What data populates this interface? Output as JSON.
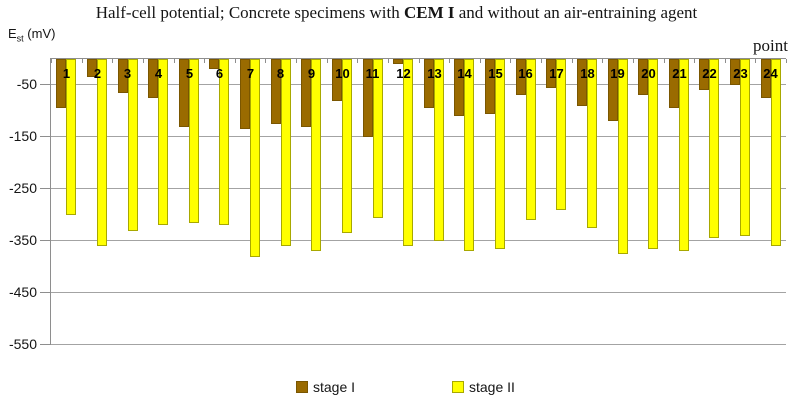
{
  "title": {
    "prefix": "Half-cell potential; Concrete specimens with ",
    "bold": "CEM I",
    "suffix": " and without an air-entraining agent"
  },
  "y_axis": {
    "label_main": "E",
    "label_sub": "st",
    "label_unit": " (mV)"
  },
  "x_axis": {
    "label": "point"
  },
  "colors": {
    "stage1_fill": "#9a6b00",
    "stage1_border": "#7a5600",
    "stage2_fill": "#ffff00",
    "stage2_border": "#a8a800",
    "gridline": "#a3a3a3",
    "axis": "#8e8e8e"
  },
  "chart_data": {
    "type": "bar",
    "title": "Half-cell potential; Concrete specimens with CEM I and without an air-entraining agent",
    "xlabel": "point",
    "ylabel": "Est (mV)",
    "ylim": [
      -550,
      0
    ],
    "grid": true,
    "gridlines": [
      -50,
      -150,
      -250,
      -350,
      -450,
      -550
    ],
    "legend_position": "bottom",
    "categories": [
      "1",
      "2",
      "3",
      "4",
      "5",
      "6",
      "7",
      "8",
      "9",
      "10",
      "11",
      "12",
      "13",
      "14",
      "15",
      "16",
      "17",
      "18",
      "19",
      "20",
      "21",
      "22",
      "23",
      "24"
    ],
    "series": [
      {
        "name": "stage I",
        "color": "#9a6b00",
        "border": "#7a5600",
        "values": [
          -95,
          -35,
          -65,
          -75,
          -130,
          -20,
          -135,
          -125,
          -130,
          -80,
          -150,
          -10,
          -95,
          -110,
          -105,
          -70,
          -55,
          -90,
          -120,
          -70,
          -95,
          -60,
          -50,
          -75
        ]
      },
      {
        "name": "stage II",
        "color": "#ffff00",
        "border": "#a8a800",
        "values": [
          -300,
          -360,
          -330,
          -320,
          -315,
          -320,
          -380,
          -360,
          -370,
          -335,
          -305,
          -360,
          -350,
          -370,
          -365,
          -310,
          -290,
          -325,
          -375,
          -365,
          -370,
          -345,
          -340,
          -360
        ]
      }
    ]
  }
}
